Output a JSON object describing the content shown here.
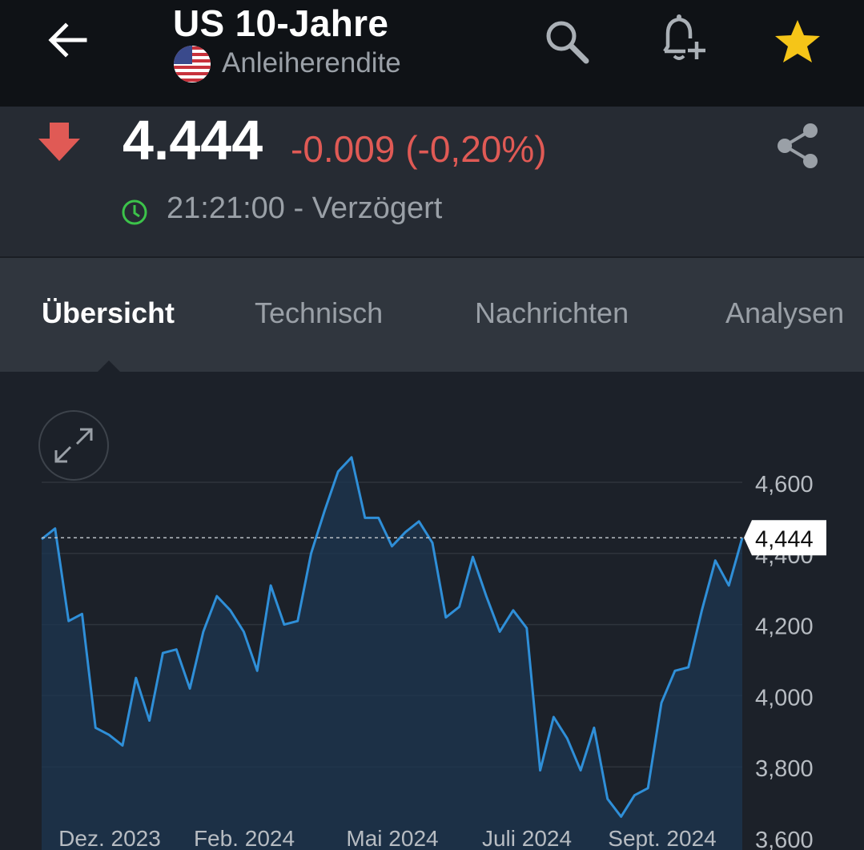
{
  "header": {
    "title": "US 10-Jahre",
    "subtitle": "Anleiherendite",
    "back_icon": "arrow-left-icon",
    "search_icon": "search-icon",
    "alert_icon": "bell-plus-icon",
    "favorite_icon": "star-icon",
    "favorite_color": "#f5c518"
  },
  "quote": {
    "price": "4.444",
    "change": "-0.009 (-0,20%)",
    "time_status": "21:21:00 - Verzögert",
    "direction_icon": "arrow-down-icon",
    "negative_color": "#e05a55",
    "clock_color": "#3cc34a"
  },
  "tabs": [
    {
      "label": "Übersicht",
      "active": true
    },
    {
      "label": "Technisch",
      "active": false
    },
    {
      "label": "Nachrichten",
      "active": false
    },
    {
      "label": "Analysen",
      "active": false
    }
  ],
  "chart_data": {
    "type": "area",
    "x_tick_labels": [
      "Dez. 2023",
      "Feb. 2024",
      "Mai 2024",
      "Juli 2024",
      "Sept. 2024"
    ],
    "y_tick_labels": [
      "4,600",
      "4,400",
      "4,200",
      "4,000",
      "3,800",
      "3,600"
    ],
    "y_ticks": [
      4.6,
      4.4,
      4.2,
      4.0,
      3.8,
      3.6
    ],
    "ylim": [
      3.6,
      4.6
    ],
    "current_value": 4.444,
    "current_label": "4,444",
    "line_color": "#2f8fd8",
    "grid": true,
    "series": [
      {
        "values": [
          4.44,
          4.47,
          4.21,
          4.23,
          3.91,
          3.89,
          3.86,
          4.05,
          3.93,
          4.12,
          4.13,
          4.02,
          4.18,
          4.28,
          4.24,
          4.18,
          4.07,
          4.31,
          4.2,
          4.21,
          4.4,
          4.52,
          4.63,
          4.67,
          4.5,
          4.5,
          4.42,
          4.46,
          4.49,
          4.43,
          4.22,
          4.25,
          4.39,
          4.28,
          4.18,
          4.24,
          4.19,
          3.79,
          3.94,
          3.88,
          3.79,
          3.91,
          3.71,
          3.66,
          3.72,
          3.74,
          3.98,
          4.07,
          4.08,
          4.24,
          4.38,
          4.31,
          4.444
        ]
      }
    ]
  }
}
